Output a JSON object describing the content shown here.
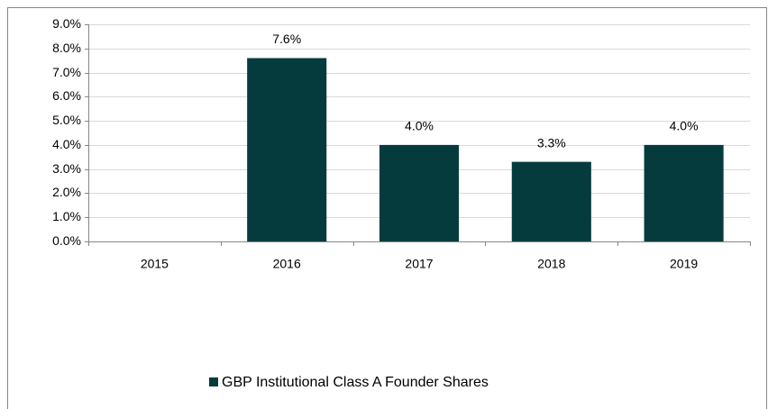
{
  "chart_data": {
    "type": "bar",
    "categories": [
      "2015",
      "2016",
      "2017",
      "2018",
      "2019"
    ],
    "series": [
      {
        "name": "GBP Institutional Class A Founder Shares",
        "color": "#063b3e",
        "values": [
          null,
          7.6,
          4.0,
          3.3,
          4.0
        ],
        "value_labels": [
          null,
          "7.6%",
          "4.0%",
          "3.3%",
          "4.0%"
        ]
      }
    ],
    "ylim": [
      0,
      9
    ],
    "yticks": [
      {
        "value": 0,
        "label": "0.0%"
      },
      {
        "value": 1,
        "label": "1.0%"
      },
      {
        "value": 2,
        "label": "2.0%"
      },
      {
        "value": 3,
        "label": "3.0%"
      },
      {
        "value": 4,
        "label": "4.0%"
      },
      {
        "value": 5,
        "label": "5.0%"
      },
      {
        "value": 6,
        "label": "6.0%"
      },
      {
        "value": 7,
        "label": "7.0%"
      },
      {
        "value": 8,
        "label": "8.0%"
      },
      {
        "value": 9,
        "label": "9.0%"
      }
    ],
    "grid": true,
    "legend": "bottom"
  }
}
